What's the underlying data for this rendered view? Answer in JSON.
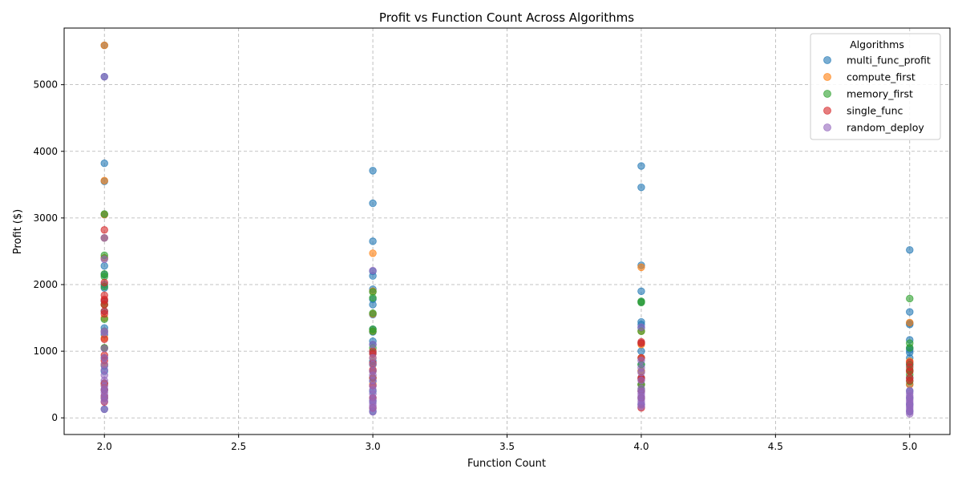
{
  "chart_data": {
    "type": "scatter",
    "title": "Profit vs Function Count Across Algorithms",
    "xlabel": "Function Count",
    "ylabel": "Profit ($)",
    "xlim": [
      1.85,
      5.15
    ],
    "ylim": [
      -250,
      5850
    ],
    "x_ticks": [
      "2.0",
      "2.5",
      "3.0",
      "3.5",
      "4.0",
      "4.5",
      "5.0"
    ],
    "y_ticks": [
      "0",
      "1000",
      "2000",
      "3000",
      "4000",
      "5000"
    ],
    "grid": true,
    "legend_title": "Algorithms",
    "legend_position": "top-right",
    "series": [
      {
        "name": "multi_func_profit",
        "color": "#1f77b4",
        "points": [
          [
            2,
            5590
          ],
          [
            2,
            5120
          ],
          [
            2,
            3820
          ],
          [
            2,
            3550
          ],
          [
            2,
            3050
          ],
          [
            2,
            2700
          ],
          [
            2,
            2400
          ],
          [
            2,
            2280
          ],
          [
            2,
            2150
          ],
          [
            2,
            2000
          ],
          [
            2,
            1950
          ],
          [
            2,
            1750
          ],
          [
            2,
            1600
          ],
          [
            2,
            1350
          ],
          [
            2,
            1250
          ],
          [
            2,
            1050
          ],
          [
            2,
            900
          ],
          [
            2,
            780
          ],
          [
            2,
            700
          ],
          [
            2,
            520
          ],
          [
            2,
            420
          ],
          [
            2,
            300
          ],
          [
            2,
            130
          ],
          [
            3,
            3710
          ],
          [
            3,
            3220
          ],
          [
            3,
            2650
          ],
          [
            3,
            2200
          ],
          [
            3,
            2130
          ],
          [
            3,
            1930
          ],
          [
            3,
            1780
          ],
          [
            3,
            1700
          ],
          [
            3,
            1550
          ],
          [
            3,
            1330
          ],
          [
            3,
            1290
          ],
          [
            3,
            1150
          ],
          [
            3,
            1100
          ],
          [
            3,
            980
          ],
          [
            3,
            850
          ],
          [
            3,
            700
          ],
          [
            3,
            550
          ],
          [
            3,
            400
          ],
          [
            3,
            250
          ],
          [
            3,
            100
          ],
          [
            4,
            3780
          ],
          [
            4,
            3460
          ],
          [
            4,
            2290
          ],
          [
            4,
            1900
          ],
          [
            4,
            1740
          ],
          [
            4,
            1440
          ],
          [
            4,
            1400
          ],
          [
            4,
            1350
          ],
          [
            4,
            1120
          ],
          [
            4,
            1000
          ],
          [
            4,
            900
          ],
          [
            4,
            800
          ],
          [
            4,
            700
          ],
          [
            4,
            600
          ],
          [
            4,
            500
          ],
          [
            4,
            400
          ],
          [
            4,
            300
          ],
          [
            4,
            200
          ],
          [
            5,
            2520
          ],
          [
            5,
            1590
          ],
          [
            5,
            1420
          ],
          [
            5,
            1400
          ],
          [
            5,
            1170
          ],
          [
            5,
            1050
          ],
          [
            5,
            1020
          ],
          [
            5,
            980
          ],
          [
            5,
            900
          ],
          [
            5,
            800
          ],
          [
            5,
            700
          ],
          [
            5,
            600
          ],
          [
            5,
            500
          ],
          [
            5,
            400
          ],
          [
            5,
            300
          ],
          [
            5,
            200
          ],
          [
            5,
            100
          ]
        ]
      },
      {
        "name": "compute_first",
        "color": "#ff7f0e",
        "points": [
          [
            2,
            5590
          ],
          [
            2,
            3560
          ],
          [
            2,
            3050
          ],
          [
            2,
            2700
          ],
          [
            2,
            2400
          ],
          [
            2,
            1700
          ],
          [
            2,
            1500
          ],
          [
            2,
            1200
          ],
          [
            2,
            1050
          ],
          [
            2,
            800
          ],
          [
            2,
            500
          ],
          [
            2,
            300
          ],
          [
            3,
            2470
          ],
          [
            3,
            1900
          ],
          [
            3,
            1560
          ],
          [
            3,
            1300
          ],
          [
            3,
            900
          ],
          [
            3,
            700
          ],
          [
            3,
            500
          ],
          [
            3,
            300
          ],
          [
            4,
            2260
          ],
          [
            4,
            1300
          ],
          [
            4,
            1100
          ],
          [
            4,
            900
          ],
          [
            4,
            700
          ],
          [
            4,
            500
          ],
          [
            5,
            1430
          ],
          [
            5,
            850
          ],
          [
            5,
            700
          ],
          [
            5,
            500
          ]
        ]
      },
      {
        "name": "memory_first",
        "color": "#2ca02c",
        "points": [
          [
            2,
            3060
          ],
          [
            2,
            2440
          ],
          [
            2,
            2160
          ],
          [
            2,
            2120
          ],
          [
            2,
            1970
          ],
          [
            2,
            1700
          ],
          [
            2,
            1480
          ],
          [
            2,
            1300
          ],
          [
            2,
            1050
          ],
          [
            3,
            1890
          ],
          [
            3,
            1800
          ],
          [
            3,
            1570
          ],
          [
            3,
            1330
          ],
          [
            3,
            1300
          ],
          [
            3,
            1050
          ],
          [
            3,
            800
          ],
          [
            3,
            600
          ],
          [
            4,
            1750
          ],
          [
            4,
            1730
          ],
          [
            4,
            1300
          ],
          [
            4,
            800
          ],
          [
            4,
            500
          ],
          [
            4,
            420
          ],
          [
            5,
            1790
          ],
          [
            5,
            1120
          ],
          [
            5,
            1050
          ],
          [
            5,
            800
          ],
          [
            5,
            720
          ],
          [
            5,
            650
          ],
          [
            5,
            550
          ]
        ]
      },
      {
        "name": "single_func",
        "color": "#d62728",
        "points": [
          [
            2,
            2820
          ],
          [
            2,
            2030
          ],
          [
            2,
            1840
          ],
          [
            2,
            1780
          ],
          [
            2,
            1760
          ],
          [
            2,
            1700
          ],
          [
            2,
            1600
          ],
          [
            2,
            1560
          ],
          [
            2,
            1180
          ],
          [
            2,
            940
          ],
          [
            2,
            860
          ],
          [
            2,
            520
          ],
          [
            2,
            420
          ],
          [
            2,
            330
          ],
          [
            2,
            240
          ],
          [
            3,
            1000
          ],
          [
            3,
            960
          ],
          [
            3,
            820
          ],
          [
            3,
            720
          ],
          [
            3,
            600
          ],
          [
            3,
            480
          ],
          [
            3,
            300
          ],
          [
            3,
            150
          ],
          [
            4,
            1140
          ],
          [
            4,
            1120
          ],
          [
            4,
            900
          ],
          [
            4,
            600
          ],
          [
            4,
            580
          ],
          [
            4,
            400
          ],
          [
            4,
            300
          ],
          [
            4,
            150
          ],
          [
            5,
            830
          ],
          [
            5,
            760
          ],
          [
            5,
            700
          ],
          [
            5,
            600
          ],
          [
            5,
            560
          ]
        ]
      },
      {
        "name": "random_deploy",
        "color": "#9467bd",
        "points": [
          [
            2,
            5120
          ],
          [
            2,
            2700
          ],
          [
            2,
            2380
          ],
          [
            2,
            1300
          ],
          [
            2,
            1280
          ],
          [
            2,
            1040
          ],
          [
            2,
            900
          ],
          [
            2,
            800
          ],
          [
            2,
            720
          ],
          [
            2,
            640
          ],
          [
            2,
            560
          ],
          [
            2,
            480
          ],
          [
            2,
            430
          ],
          [
            2,
            380
          ],
          [
            2,
            330
          ],
          [
            2,
            290
          ],
          [
            2,
            250
          ],
          [
            2,
            130
          ],
          [
            3,
            2210
          ],
          [
            3,
            1100
          ],
          [
            3,
            900
          ],
          [
            3,
            800
          ],
          [
            3,
            700
          ],
          [
            3,
            640
          ],
          [
            3,
            560
          ],
          [
            3,
            480
          ],
          [
            3,
            420
          ],
          [
            3,
            360
          ],
          [
            3,
            300
          ],
          [
            3,
            260
          ],
          [
            3,
            220
          ],
          [
            3,
            180
          ],
          [
            3,
            140
          ],
          [
            3,
            90
          ],
          [
            4,
            1360
          ],
          [
            4,
            860
          ],
          [
            4,
            750
          ],
          [
            4,
            680
          ],
          [
            4,
            560
          ],
          [
            4,
            440
          ],
          [
            4,
            400
          ],
          [
            4,
            360
          ],
          [
            4,
            320
          ],
          [
            4,
            280
          ],
          [
            4,
            240
          ],
          [
            4,
            200
          ],
          [
            4,
            170
          ],
          [
            5,
            410
          ],
          [
            5,
            370
          ],
          [
            5,
            330
          ],
          [
            5,
            300
          ],
          [
            5,
            270
          ],
          [
            5,
            240
          ],
          [
            5,
            210
          ],
          [
            5,
            180
          ],
          [
            5,
            150
          ],
          [
            5,
            120
          ],
          [
            5,
            90
          ],
          [
            5,
            60
          ]
        ]
      }
    ]
  }
}
